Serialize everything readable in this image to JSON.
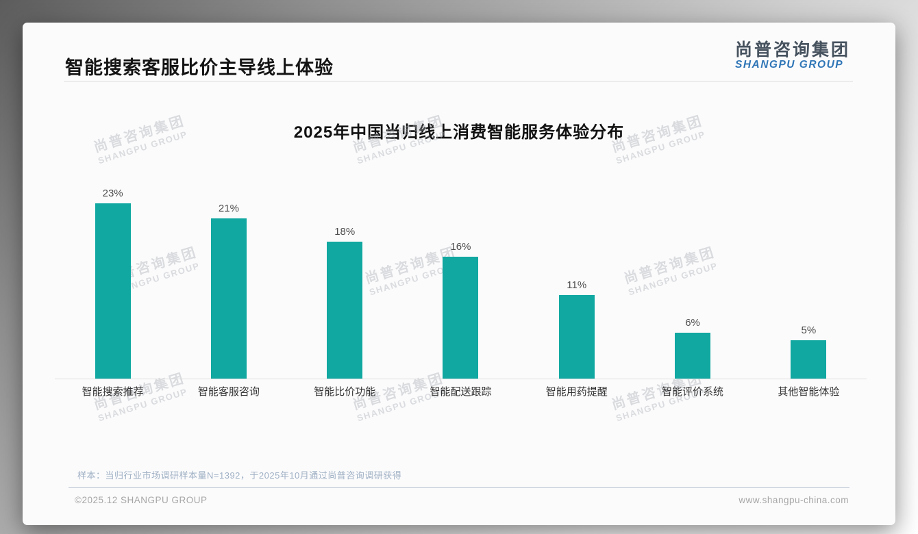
{
  "page": {
    "header_title": "智能搜索客服比价主导线上体验",
    "logo": {
      "cn": "尚普咨询集团",
      "en": "SHANGPU GROUP"
    },
    "watermark": {
      "cn": "尚普咨询集团",
      "en": "SHANGPU GROUP"
    },
    "note": "样本：当归行业市场调研样本量N=1392，于2025年10月通过尚普咨询调研获得",
    "footer_left": "©2025.12 SHANGPU GROUP",
    "footer_right": "www.shangpu-china.com"
  },
  "chart_data": {
    "type": "bar",
    "title": "2025年中国当归线上消费智能服务体验分布",
    "categories": [
      "智能搜索推荐",
      "智能客服咨询",
      "智能比价功能",
      "智能配送跟踪",
      "智能用药提醒",
      "智能评价系统",
      "其他智能体验"
    ],
    "values": [
      23,
      21,
      18,
      16,
      11,
      6,
      5
    ],
    "data_labels": [
      "23%",
      "21%",
      "18%",
      "16%",
      "11%",
      "6%",
      "5%"
    ],
    "unit": "%",
    "bar_color": "#10A8A1",
    "value_label_color": "#4d4d4d",
    "ylim": [
      0,
      25
    ],
    "grid": false,
    "legend": "none",
    "xlabel": "",
    "ylabel": ""
  }
}
